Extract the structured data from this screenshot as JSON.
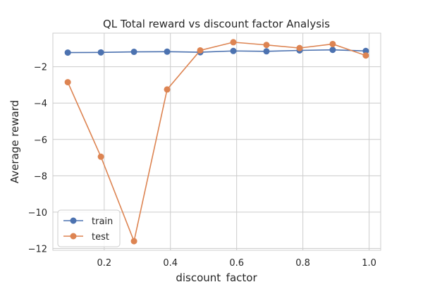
{
  "chart_data": {
    "type": "line",
    "title": "QL Total reward vs discount factor Analysis",
    "xlabel": "discount_factor",
    "ylabel": "Average reward",
    "xlim": [
      0.045,
      1.035
    ],
    "ylim": [
      -12.1,
      -0.15
    ],
    "x_ticks": [
      0.2,
      0.4,
      0.6,
      0.8,
      1.0
    ],
    "x_tick_labels": [
      "0.2",
      "0.4",
      "0.6",
      "0.8",
      "1.0"
    ],
    "y_ticks": [
      -2,
      -4,
      -6,
      -8,
      -10,
      -12
    ],
    "y_tick_labels": [
      "−2",
      "−4",
      "−6",
      "−8",
      "−10",
      "−12"
    ],
    "grid": true,
    "legend_position": "lower-left",
    "x": [
      0.09,
      0.19,
      0.29,
      0.39,
      0.49,
      0.59,
      0.69,
      0.79,
      0.89,
      0.99
    ],
    "series": [
      {
        "name": "train",
        "color": "#4c72b0",
        "values": [
          -1.22,
          -1.21,
          -1.18,
          -1.17,
          -1.2,
          -1.13,
          -1.15,
          -1.1,
          -1.07,
          -1.13
        ]
      },
      {
        "name": "test",
        "color": "#dd8452",
        "values": [
          -2.85,
          -6.95,
          -11.6,
          -3.25,
          -1.1,
          -0.65,
          -0.8,
          -0.97,
          -0.75,
          -1.38
        ]
      }
    ]
  }
}
